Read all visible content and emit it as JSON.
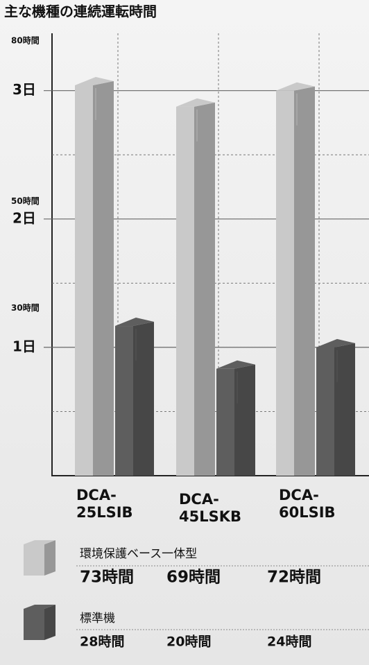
{
  "chart_data": {
    "type": "bar3d",
    "title": "主な機種の連続運転時間",
    "categories": [
      "DCA-25LSIB",
      "DCA-45LSKB",
      "DCA-60LSIB"
    ],
    "series": [
      {
        "name": "環境保護ベース一体型",
        "color": "#c9c9c9",
        "values": [
          73,
          69,
          72
        ],
        "value_labels": [
          "73時間",
          "69時間",
          "72時間"
        ]
      },
      {
        "name": "標準機",
        "color": "#5e5e5e",
        "values": [
          28,
          20,
          24
        ],
        "value_labels": [
          "28時間",
          "20時間",
          "24時間"
        ]
      }
    ],
    "ylim": [
      0,
      80
    ],
    "yticks": [
      {
        "value": 24,
        "label": "1日"
      },
      {
        "value": 48,
        "label": "2日"
      },
      {
        "value": 72,
        "label": "3日"
      }
    ],
    "hour_ticks": [
      {
        "value": 80,
        "label": "80時間"
      },
      {
        "value": 50,
        "label": "50時間"
      },
      {
        "value": 30,
        "label": "30時間"
      }
    ],
    "grid": true
  }
}
